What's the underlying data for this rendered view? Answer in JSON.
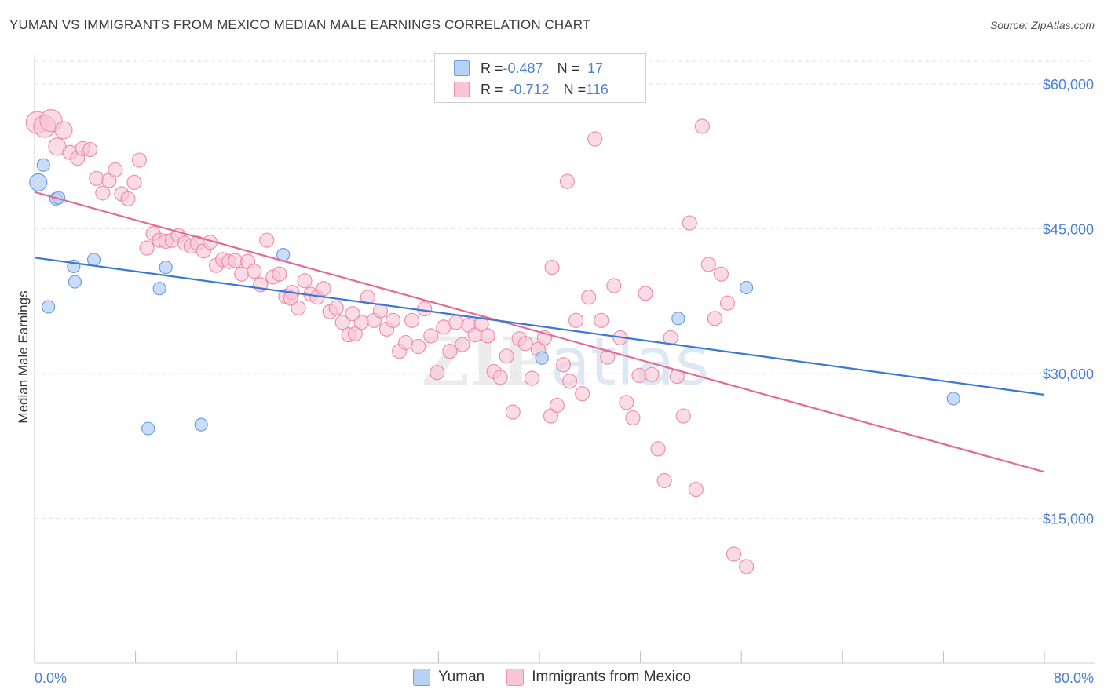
{
  "title": "YUMAN VS IMMIGRANTS FROM MEXICO MEDIAN MALE EARNINGS CORRELATION CHART",
  "source": "Source: ZipAtlas.com",
  "colors": {
    "yuman_fill": "#b8d2f5",
    "yuman_stroke": "#6f9fe0",
    "yuman_line": "#3a78d4",
    "mexico_fill": "#f9c5d5",
    "mexico_stroke": "#ee8fac",
    "mexico_line": "#e46a96",
    "tick_text": "#4a7fd4",
    "grid": "#e3e3e3"
  },
  "legend": {
    "rows": [
      {
        "r_label": "R = ",
        "r_value": "-0.487",
        "n_label": "N = ",
        "n_value": "17"
      },
      {
        "r_label": "R = ",
        "r_value": "-0.712",
        "n_label": "N = ",
        "n_value": "116"
      }
    ]
  },
  "bottom_legend": [
    "Yuman",
    "Immigrants from Mexico"
  ],
  "chart_data": {
    "type": "scatter",
    "title": "YUMAN VS IMMIGRANTS FROM MEXICO MEDIAN MALE EARNINGS CORRELATION CHART",
    "xlabel": "",
    "ylabel": "Median Male Earnings",
    "xlim": [
      0,
      80
    ],
    "ylim": [
      0,
      63000
    ],
    "x_tick_labels": [
      "0.0%",
      "80.0%"
    ],
    "y_ticks": [
      15000,
      30000,
      45000,
      60000
    ],
    "y_tick_labels": [
      "$15,000",
      "$30,000",
      "$45,000",
      "$60,000"
    ],
    "grid": true,
    "watermark": "ZIPatlas",
    "series": [
      {
        "name": "Yuman",
        "points": [
          [
            0.3,
            49800
          ],
          [
            0.7,
            51600
          ],
          [
            1.1,
            36900
          ],
          [
            1.7,
            48100
          ],
          [
            1.9,
            48200
          ],
          [
            3.1,
            41100
          ],
          [
            3.2,
            39500
          ],
          [
            4.7,
            41800
          ],
          [
            9.0,
            24300
          ],
          [
            9.9,
            38800
          ],
          [
            10.4,
            41000
          ],
          [
            13.2,
            24700
          ],
          [
            19.7,
            42300
          ],
          [
            40.2,
            31600
          ],
          [
            51.0,
            35700
          ],
          [
            56.4,
            38900
          ],
          [
            72.8,
            27400
          ]
        ],
        "trend": {
          "x0": 0,
          "y0": 42000,
          "x1": 80,
          "y1": 27800
        }
      },
      {
        "name": "Immigrants from Mexico",
        "points": [
          [
            0.2,
            56000
          ],
          [
            0.8,
            55600
          ],
          [
            1.3,
            56200
          ],
          [
            1.8,
            53500
          ],
          [
            2.3,
            55200
          ],
          [
            2.8,
            52900
          ],
          [
            3.4,
            52300
          ],
          [
            3.8,
            53300
          ],
          [
            4.4,
            53200
          ],
          [
            4.9,
            50200
          ],
          [
            5.4,
            48700
          ],
          [
            5.9,
            50000
          ],
          [
            6.4,
            51100
          ],
          [
            6.9,
            48600
          ],
          [
            7.4,
            48100
          ],
          [
            7.9,
            49800
          ],
          [
            8.3,
            52100
          ],
          [
            8.9,
            43000
          ],
          [
            9.4,
            44500
          ],
          [
            9.9,
            43800
          ],
          [
            10.4,
            43700
          ],
          [
            10.9,
            43800
          ],
          [
            11.4,
            44300
          ],
          [
            11.9,
            43500
          ],
          [
            12.4,
            43200
          ],
          [
            12.9,
            43500
          ],
          [
            13.4,
            42700
          ],
          [
            13.9,
            43600
          ],
          [
            14.4,
            41200
          ],
          [
            14.9,
            41800
          ],
          [
            15.4,
            41600
          ],
          [
            15.9,
            41700
          ],
          [
            16.4,
            40300
          ],
          [
            16.9,
            41600
          ],
          [
            17.4,
            40600
          ],
          [
            17.9,
            39200
          ],
          [
            18.4,
            43800
          ],
          [
            18.9,
            40000
          ],
          [
            19.4,
            40300
          ],
          [
            19.9,
            38000
          ],
          [
            20.4,
            38400
          ],
          [
            20.9,
            36800
          ],
          [
            21.4,
            39600
          ],
          [
            21.9,
            38200
          ],
          [
            22.4,
            37900
          ],
          [
            22.9,
            38800
          ],
          [
            23.4,
            36400
          ],
          [
            23.9,
            36800
          ],
          [
            24.4,
            35300
          ],
          [
            24.9,
            34000
          ],
          [
            25.4,
            34100
          ],
          [
            25.9,
            35300
          ],
          [
            26.4,
            37900
          ],
          [
            26.9,
            35500
          ],
          [
            27.4,
            36500
          ],
          [
            27.9,
            34600
          ],
          [
            28.4,
            35500
          ],
          [
            28.9,
            32300
          ],
          [
            29.4,
            33200
          ],
          [
            29.9,
            35500
          ],
          [
            30.4,
            32800
          ],
          [
            30.9,
            36700
          ],
          [
            31.4,
            33900
          ],
          [
            31.9,
            30100
          ],
          [
            32.4,
            34800
          ],
          [
            32.9,
            32300
          ],
          [
            33.4,
            35300
          ],
          [
            33.9,
            33000
          ],
          [
            34.4,
            35000
          ],
          [
            34.9,
            34000
          ],
          [
            35.4,
            35100
          ],
          [
            35.9,
            33900
          ],
          [
            36.4,
            30200
          ],
          [
            36.9,
            29600
          ],
          [
            37.4,
            31800
          ],
          [
            37.9,
            26000
          ],
          [
            38.4,
            33600
          ],
          [
            38.9,
            33100
          ],
          [
            39.4,
            29500
          ],
          [
            39.9,
            32500
          ],
          [
            40.4,
            33700
          ],
          [
            40.9,
            25600
          ],
          [
            41.4,
            26700
          ],
          [
            41.9,
            30900
          ],
          [
            42.4,
            29200
          ],
          [
            42.9,
            35500
          ],
          [
            43.4,
            27900
          ],
          [
            43.9,
            37900
          ],
          [
            44.4,
            54300
          ],
          [
            44.9,
            35500
          ],
          [
            45.4,
            31700
          ],
          [
            45.9,
            39100
          ],
          [
            46.4,
            33700
          ],
          [
            46.9,
            27000
          ],
          [
            47.4,
            25400
          ],
          [
            47.9,
            29800
          ],
          [
            48.4,
            38300
          ],
          [
            48.9,
            29900
          ],
          [
            49.4,
            22200
          ],
          [
            49.9,
            18900
          ],
          [
            50.4,
            33700
          ],
          [
            50.9,
            29700
          ],
          [
            51.4,
            25600
          ],
          [
            51.9,
            45600
          ],
          [
            52.4,
            18000
          ],
          [
            52.9,
            55600
          ],
          [
            53.4,
            41300
          ],
          [
            53.9,
            35700
          ],
          [
            54.4,
            40300
          ],
          [
            54.9,
            37300
          ],
          [
            55.4,
            11300
          ],
          [
            56.4,
            10000
          ],
          [
            42.2,
            49900
          ],
          [
            41.0,
            41000
          ],
          [
            25.2,
            36200
          ],
          [
            20.3,
            37800
          ]
        ],
        "trend": {
          "x0": 0,
          "y0": 48800,
          "x1": 80,
          "y1": 19800
        }
      }
    ]
  }
}
